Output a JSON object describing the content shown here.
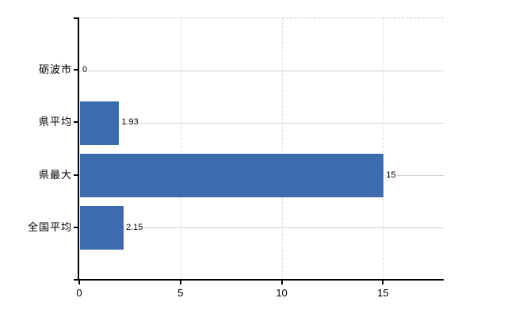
{
  "chart_data": {
    "type": "bar",
    "orientation": "horizontal",
    "title": "",
    "xlabel": "",
    "ylabel": "",
    "categories": [
      "砺波市",
      "県平均",
      "県最大",
      "全国平均"
    ],
    "values": [
      0,
      1.93,
      15,
      2.15
    ],
    "value_labels": [
      "0",
      "1.93",
      "15",
      "2.15"
    ],
    "x_ticks": [
      0,
      5,
      10,
      15
    ],
    "x_tick_labels": [
      "0",
      "5",
      "10",
      "15"
    ],
    "xlim": [
      0,
      18
    ],
    "grid": true,
    "legend": false,
    "colors": {
      "bar": "#3d6cae",
      "axis": "#000000",
      "h_gridline": "#cdd4cb",
      "v_gridline": "#d9d9d9",
      "top_border": "#c9cfc9",
      "background": "#ffffff",
      "text": "#000000"
    }
  }
}
